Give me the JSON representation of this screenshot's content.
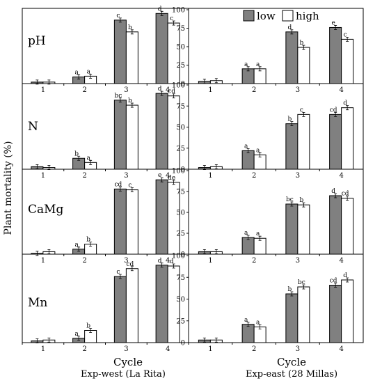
{
  "figure": {
    "ylabel": "Plant mortality (%)",
    "xlabel": "Cycle",
    "legend": [
      "low",
      "high"
    ],
    "column_titles": [
      "Exp-west (La Rita)",
      "Exp-east (28 Millas)"
    ],
    "row_labels": [
      "pH",
      "N",
      "CaMg",
      "Mn"
    ],
    "colors": {
      "low": "#808080",
      "high": "#ffffff",
      "stroke": "#000000"
    }
  },
  "chart_data": [
    {
      "type": "bar",
      "title": "pH",
      "experiment": "Exp-west (La Rita)",
      "categories": [
        "1",
        "2",
        "3",
        "4"
      ],
      "ylim": [
        0,
        100
      ],
      "yticks": [],
      "series": [
        {
          "name": "low",
          "values": [
            2,
            9,
            86,
            95
          ]
        },
        {
          "name": "high",
          "values": [
            2,
            10,
            70,
            82
          ]
        }
      ],
      "labels": {
        "low": [
          "",
          "a",
          "c",
          "d"
        ],
        "high": [
          "",
          "a",
          "b",
          "c"
        ]
      }
    },
    {
      "type": "bar",
      "title": "pH",
      "experiment": "Exp-east (28 Millas)",
      "categories": [
        "1",
        "2",
        "3",
        "4"
      ],
      "ylim": [
        0,
        100
      ],
      "yticks": [
        0,
        25,
        50,
        75,
        100
      ],
      "series": [
        {
          "name": "low",
          "values": [
            3,
            20,
            70,
            76
          ]
        },
        {
          "name": "high",
          "values": [
            4,
            20,
            49,
            60
          ]
        }
      ],
      "labels": {
        "low": [
          "",
          "a",
          "d",
          "e"
        ],
        "high": [
          "",
          "a",
          "b",
          "c"
        ]
      }
    },
    {
      "type": "bar",
      "title": "N",
      "experiment": "Exp-west (La Rita)",
      "categories": [
        "1",
        "2",
        "3",
        "4"
      ],
      "ylim": [
        0,
        100
      ],
      "yticks": [],
      "series": [
        {
          "name": "low",
          "values": [
            3,
            13,
            82,
            90
          ]
        },
        {
          "name": "high",
          "values": [
            2,
            8,
            76,
            87
          ]
        }
      ],
      "labels": {
        "low": [
          "",
          "b",
          "bc",
          "d"
        ],
        "high": [
          "",
          "a",
          "b",
          "cd"
        ]
      }
    },
    {
      "type": "bar",
      "title": "N",
      "experiment": "Exp-east (28 Millas)",
      "categories": [
        "1",
        "2",
        "3",
        "4"
      ],
      "ylim": [
        0,
        100
      ],
      "yticks": [
        0,
        25,
        50,
        75,
        100
      ],
      "series": [
        {
          "name": "low",
          "values": [
            2,
            22,
            54,
            65
          ]
        },
        {
          "name": "high",
          "values": [
            3,
            17,
            65,
            73
          ]
        }
      ],
      "labels": {
        "low": [
          "",
          "a",
          "b",
          "cd"
        ],
        "high": [
          "",
          "a",
          "c",
          "d"
        ]
      }
    },
    {
      "type": "bar",
      "title": "CaMg",
      "experiment": "Exp-west (La Rita)",
      "categories": [
        "1",
        "2",
        "3",
        "4"
      ],
      "ylim": [
        0,
        100
      ],
      "yticks": [],
      "series": [
        {
          "name": "low",
          "values": [
            1,
            6,
            78,
            89
          ]
        },
        {
          "name": "high",
          "values": [
            3,
            12,
            77,
            86
          ]
        }
      ],
      "labels": {
        "low": [
          "",
          "a",
          "cd",
          "e"
        ],
        "high": [
          "",
          "b",
          "c",
          "de"
        ]
      }
    },
    {
      "type": "bar",
      "title": "CaMg",
      "experiment": "Exp-east (28 Millas)",
      "categories": [
        "1",
        "2",
        "3",
        "4"
      ],
      "ylim": [
        0,
        100
      ],
      "yticks": [
        0,
        25,
        50,
        75,
        100
      ],
      "series": [
        {
          "name": "low",
          "values": [
            3,
            20,
            60,
            70
          ]
        },
        {
          "name": "high",
          "values": [
            3,
            19,
            59,
            67
          ]
        }
      ],
      "labels": {
        "low": [
          "",
          "a",
          "bc",
          "d"
        ],
        "high": [
          "",
          "a",
          "b",
          "cd"
        ]
      }
    },
    {
      "type": "bar",
      "title": "Mn",
      "experiment": "Exp-west (La Rita)",
      "categories": [
        "1",
        "2",
        "3",
        "4"
      ],
      "ylim": [
        0,
        100
      ],
      "yticks": [],
      "series": [
        {
          "name": "low",
          "values": [
            2,
            5,
            76,
            89
          ]
        },
        {
          "name": "high",
          "values": [
            3,
            14,
            85,
            88
          ]
        }
      ],
      "labels": {
        "low": [
          "",
          "a",
          "c",
          "d"
        ],
        "high": [
          "",
          "b",
          "cd",
          "d"
        ]
      }
    },
    {
      "type": "bar",
      "title": "Mn",
      "experiment": "Exp-east (28 Millas)",
      "categories": [
        "1",
        "2",
        "3",
        "4"
      ],
      "ylim": [
        0,
        100
      ],
      "yticks": [
        0,
        25,
        50,
        75,
        100
      ],
      "series": [
        {
          "name": "low",
          "values": [
            3,
            21,
            56,
            66
          ]
        },
        {
          "name": "high",
          "values": [
            3,
            18,
            64,
            72
          ]
        }
      ],
      "labels": {
        "low": [
          "",
          "a",
          "b",
          "cd"
        ],
        "high": [
          "",
          "a",
          "bc",
          "d"
        ]
      }
    }
  ]
}
